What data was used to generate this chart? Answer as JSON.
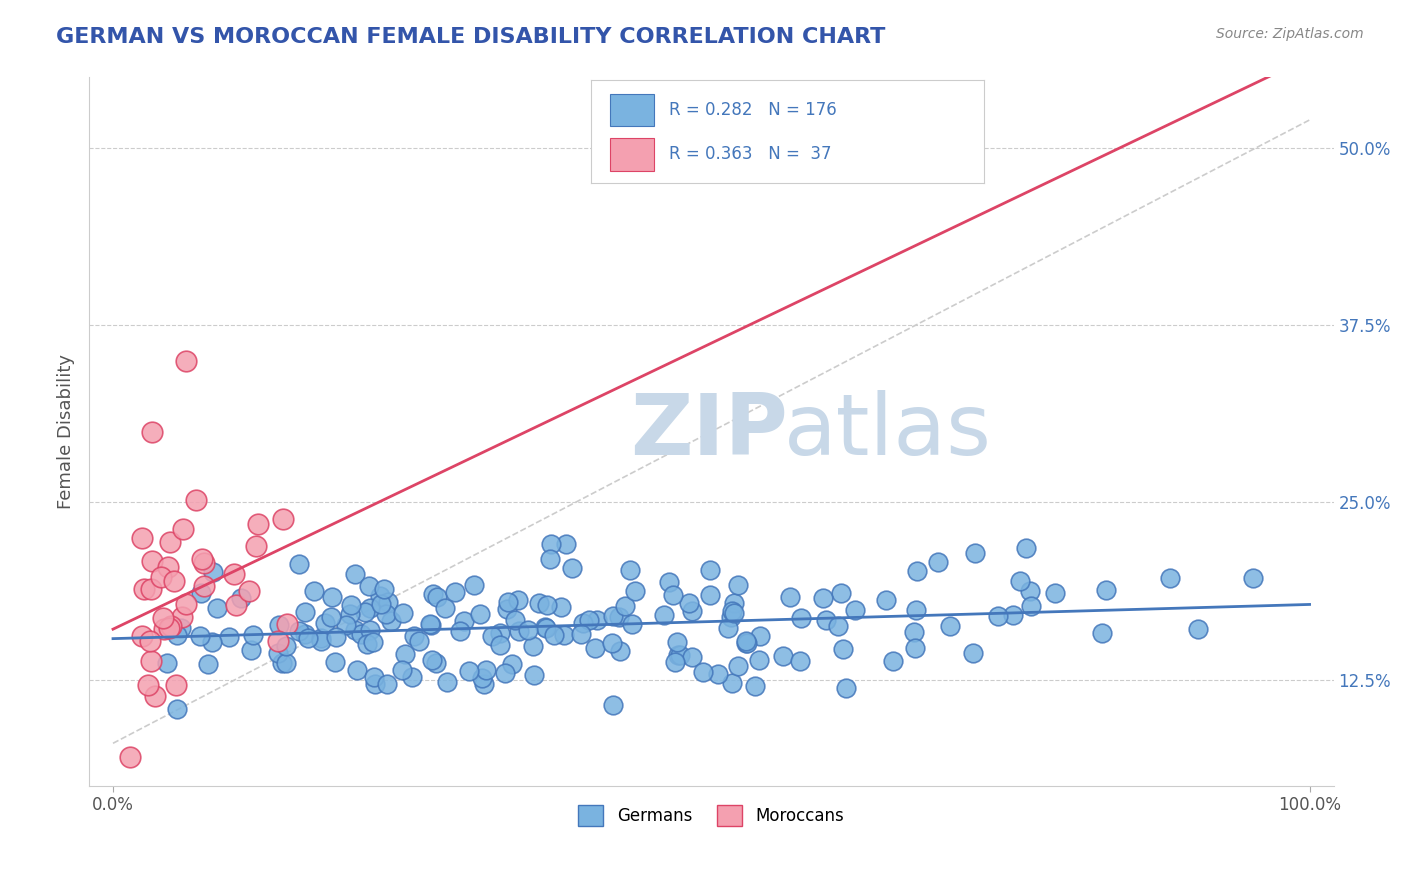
{
  "title": "GERMAN VS MOROCCAN FEMALE DISABILITY CORRELATION CHART",
  "source": "Source: ZipAtlas.com",
  "ylabel": "Female Disability",
  "legend_label_blue": "Germans",
  "legend_label_pink": "Moroccans",
  "blue_color": "#7ab3e0",
  "pink_color": "#f4a0b0",
  "blue_line_color": "#4477bb",
  "pink_line_color": "#dd4466",
  "title_color": "#3355aa",
  "watermark_zip": "ZIP",
  "watermark_atlas": "atlas",
  "watermark_color": "#c8d8e8",
  "background_color": "#ffffff",
  "grid_color": "#cccccc",
  "R_blue": 0.282,
  "N_blue": 176,
  "R_pink": 0.363,
  "N_pink": 37,
  "xmin": 0.0,
  "xmax": 1.0,
  "ymin": 0.05,
  "ymax": 0.55,
  "yticks": [
    0.125,
    0.25,
    0.375,
    0.5
  ],
  "ytick_labels": [
    "12.5%",
    "25.0%",
    "37.5%",
    "50.0%"
  ]
}
